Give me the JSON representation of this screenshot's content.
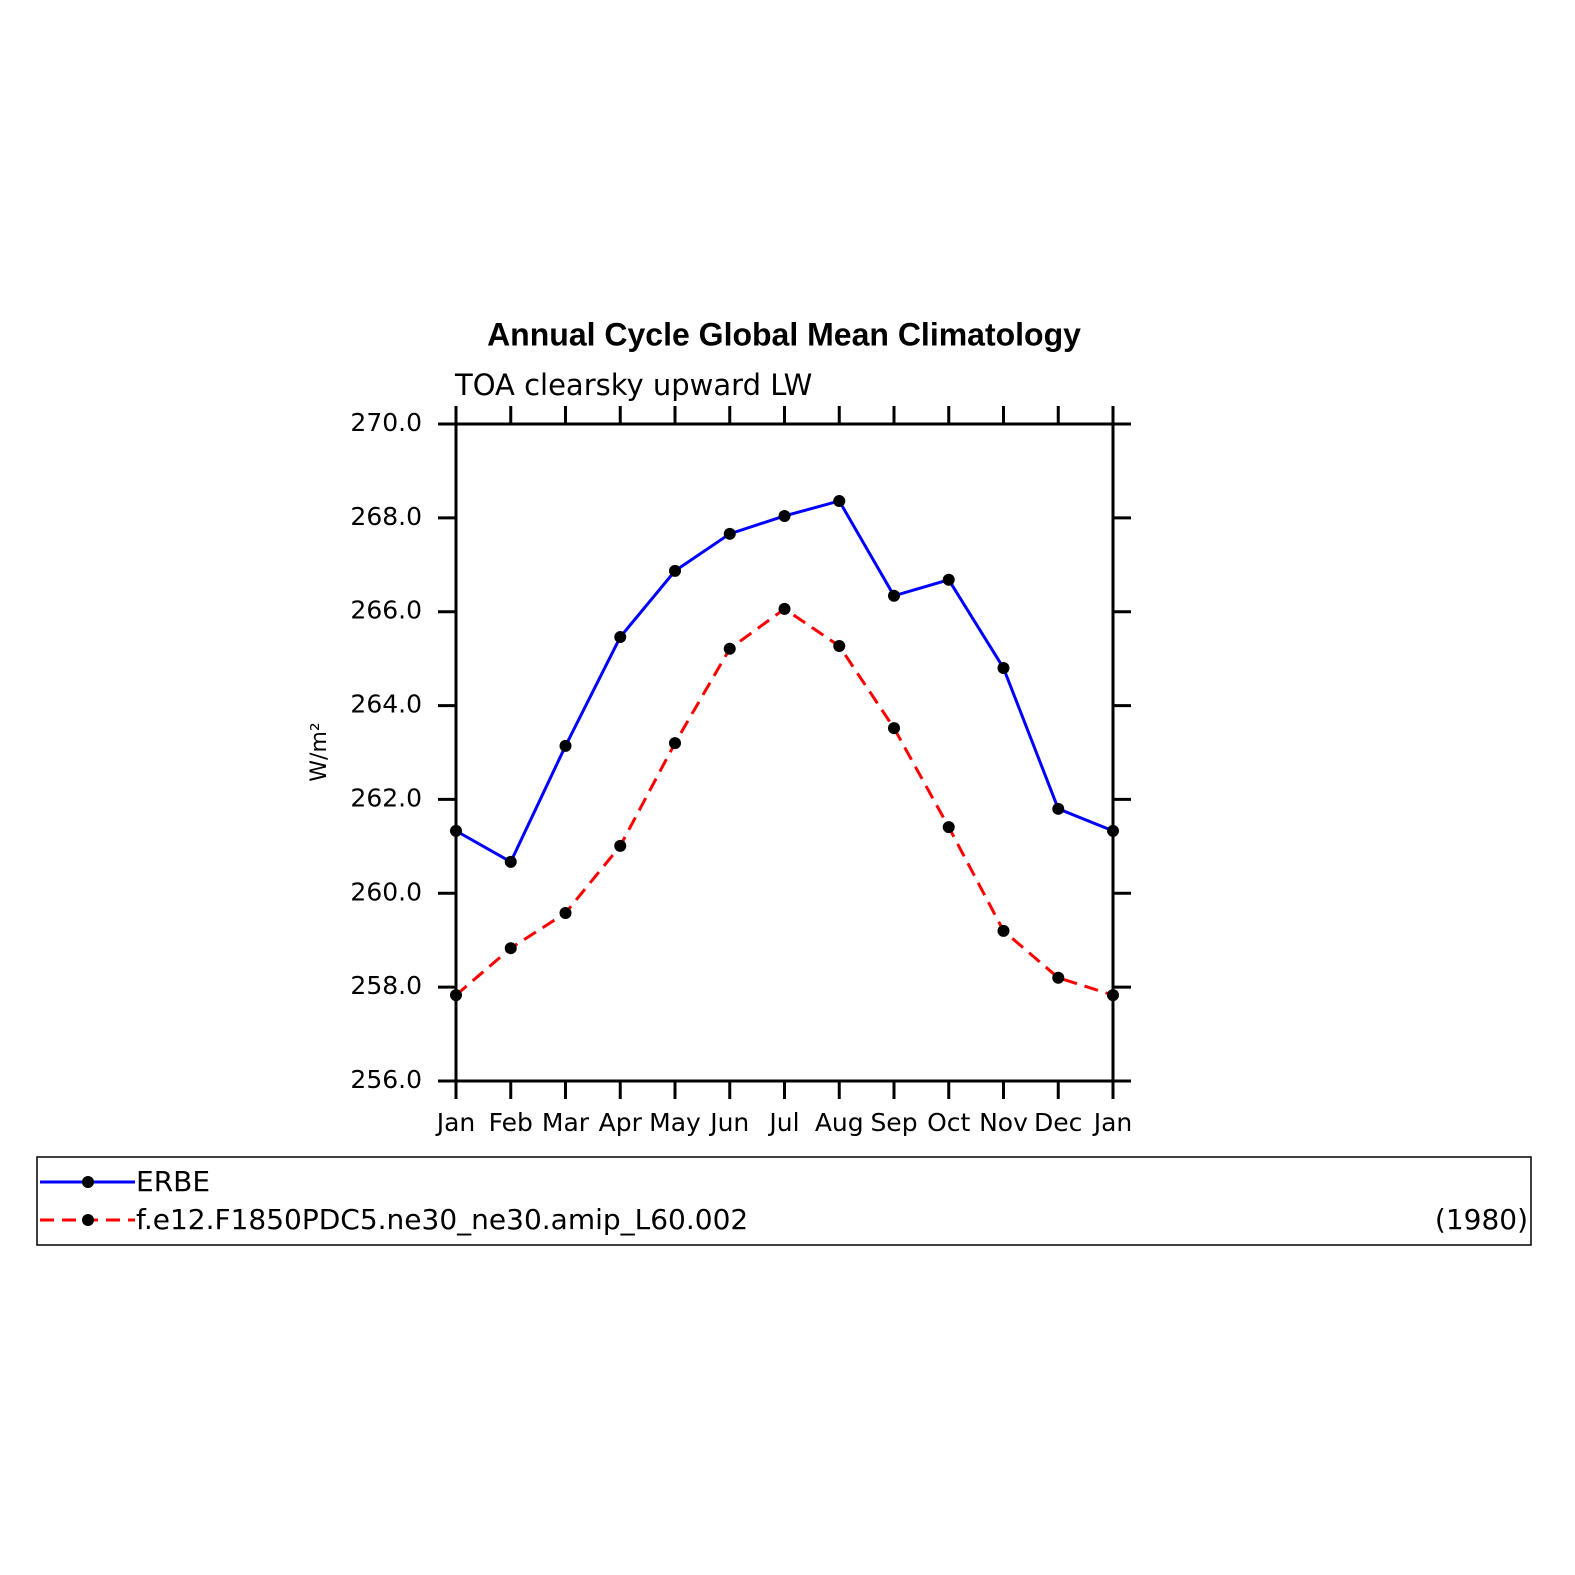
{
  "chart_data": {
    "type": "line",
    "title": "Annual Cycle Global Mean Climatology",
    "subtitle": "TOA clearsky upward LW",
    "ylabel": "W/m²",
    "categories": [
      "Jan",
      "Feb",
      "Mar",
      "Apr",
      "May",
      "Jun",
      "Jul",
      "Aug",
      "Sep",
      "Oct",
      "Nov",
      "Dec",
      "Jan"
    ],
    "series": [
      {
        "name": "ERBE",
        "color": "#0000ff",
        "dash": false,
        "values": [
          261.33,
          260.67,
          263.14,
          265.46,
          266.87,
          267.66,
          268.04,
          268.36,
          266.34,
          266.68,
          264.8,
          261.8,
          261.33
        ]
      },
      {
        "name": "f.e12.F1850PDC5.ne30_ne30.amip_L60.002",
        "color": "#ff0000",
        "dash": true,
        "values": [
          257.83,
          258.83,
          259.58,
          261.01,
          263.2,
          265.21,
          266.06,
          265.27,
          263.52,
          261.41,
          259.2,
          258.2,
          257.83
        ]
      }
    ],
    "legend_annotation": "(1980)",
    "ylim": [
      256,
      270
    ],
    "yticks": [
      {
        "value": 256,
        "label": "256.0"
      },
      {
        "value": 258,
        "label": "258.0"
      },
      {
        "value": 260,
        "label": "260.0"
      },
      {
        "value": 262,
        "label": "262.0"
      },
      {
        "value": 264,
        "label": "264.0"
      },
      {
        "value": 266,
        "label": "266.0"
      },
      {
        "value": 268,
        "label": "268.0"
      },
      {
        "value": 270,
        "label": "270.0"
      }
    ],
    "marker_color": "#000000"
  }
}
